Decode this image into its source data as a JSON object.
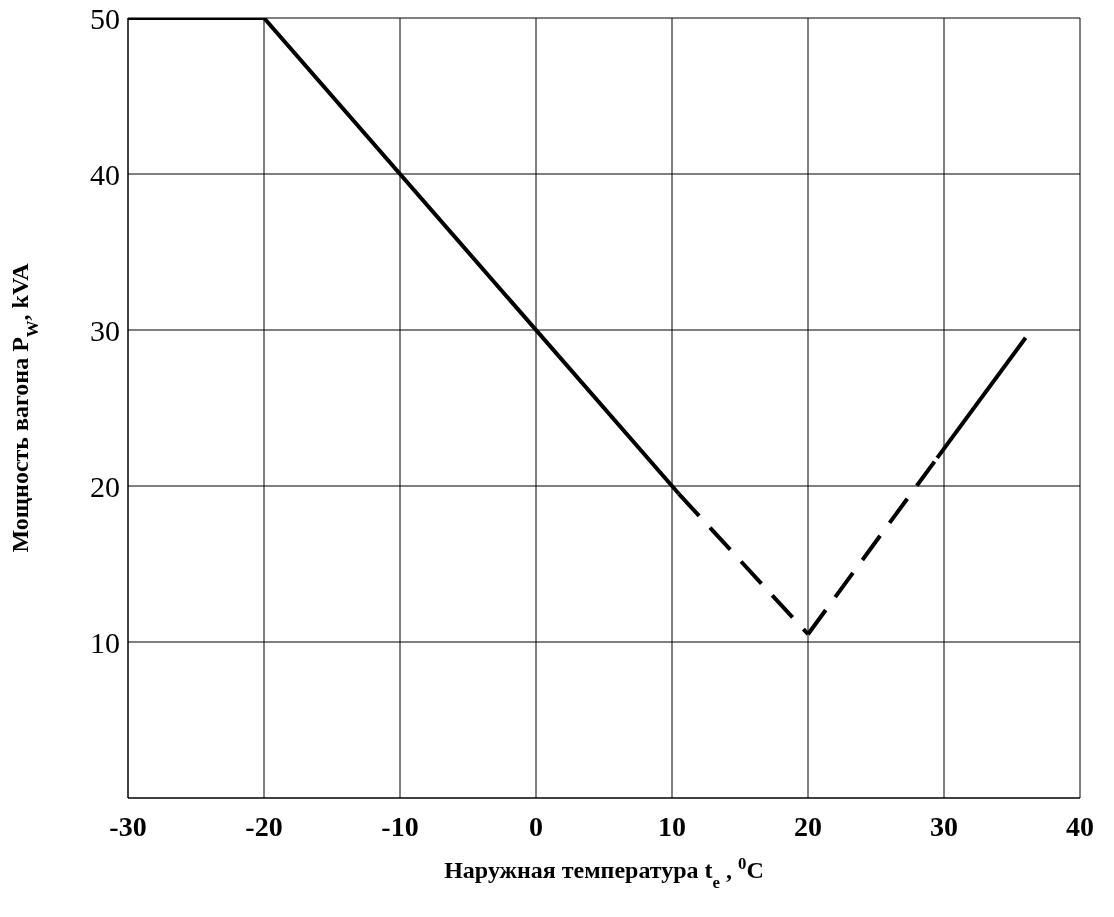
{
  "chart_data": {
    "type": "line",
    "xlabel": "Наружная температура t$_{e}$ , $^{0}$C",
    "ylabel": "Мощность вагона P$_{W}$, kVA",
    "xlim": [
      -30,
      40
    ],
    "xticks": [
      -30,
      -20,
      -10,
      0,
      10,
      20,
      30,
      40
    ],
    "ylim": [
      0,
      50
    ],
    "yticks": [
      {
        "value": 0,
        "label": null
      },
      10,
      20,
      30,
      40,
      50
    ],
    "grid": true,
    "legend": false,
    "series": [
      {
        "color": "#000000",
        "line_style": "solid",
        "x": [
          -30,
          -20,
          10.5
        ],
        "values": [
          50,
          50,
          19.5
        ]
      },
      {
        "color": "#000000",
        "line_style": "dashed",
        "x": [
          10.5,
          20
        ],
        "values": [
          19.5,
          10.5
        ]
      },
      {
        "color": "#000000",
        "line_style": "dashed",
        "x": [
          20,
          29.5
        ],
        "values": [
          10.5,
          21.8
        ]
      },
      {
        "color": "#000000",
        "line_style": "solid",
        "x": [
          29.5,
          36
        ],
        "values": [
          21.8,
          29.5
        ]
      }
    ]
  }
}
